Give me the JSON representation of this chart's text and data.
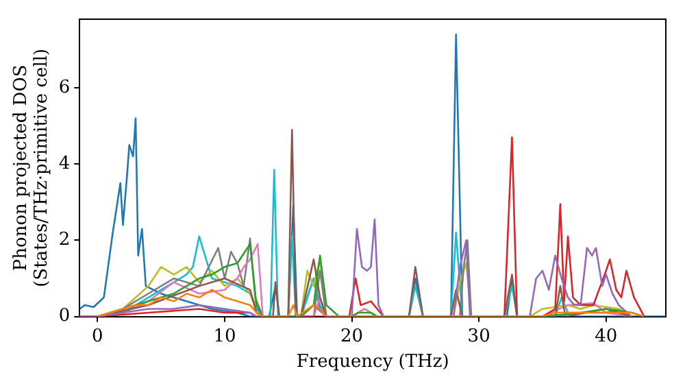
{
  "chart_data": {
    "type": "line",
    "xlabel": "Frequency (THz)",
    "ylabel": "Phonon projected DOS\n(States/THz·primitive cell)",
    "xlim": [
      -1.4,
      44.7
    ],
    "ylim": [
      0,
      7.8
    ],
    "xticks": [
      0,
      10,
      20,
      30,
      40
    ],
    "yticks": [
      0,
      2,
      4,
      6
    ],
    "grid": false,
    "legend": false,
    "marker": "none",
    "line_style": "solid",
    "series": [
      {
        "color": "#ff7f0e",
        "x": [
          0,
          1,
          2,
          3,
          4,
          5,
          6,
          7,
          8,
          9,
          10,
          11,
          12,
          12.5,
          13,
          15,
          15.4,
          15.7,
          17,
          17.5,
          18,
          35,
          36,
          37,
          38,
          39,
          40,
          41,
          42,
          43
        ],
        "values": [
          0,
          0.1,
          0.2,
          0.3,
          0.3,
          0.5,
          0.4,
          0.6,
          0.5,
          0.7,
          0.5,
          0.4,
          0.3,
          0.1,
          0,
          0,
          0.3,
          0,
          0.3,
          0.2,
          0,
          0,
          0.1,
          0.1,
          0.1,
          0.1,
          0.1,
          0.1,
          0.1,
          0
        ]
      },
      {
        "color": "#2ca02c",
        "x": [
          0.6,
          1,
          2,
          3,
          4,
          5,
          6,
          7,
          8,
          9,
          10,
          11,
          12,
          12.5,
          13,
          16,
          17,
          17.5,
          18,
          19,
          20,
          20.5,
          21,
          21.5,
          22,
          35,
          38,
          40,
          42,
          43
        ],
        "values": [
          0.05,
          0.1,
          0.2,
          0.3,
          0.4,
          0.5,
          0.6,
          0.8,
          1.0,
          1.1,
          1.3,
          1.4,
          1.9,
          0.3,
          0,
          0,
          0.3,
          1.6,
          0.3,
          0,
          0,
          0.1,
          0.1,
          0.1,
          0,
          0,
          0.1,
          0.2,
          0.1,
          0
        ]
      },
      {
        "color": "#9467bd",
        "x": [
          -1.4,
          0,
          2,
          4,
          6,
          8,
          10,
          12,
          12.5,
          13,
          16,
          17,
          18,
          20,
          20.4,
          20.8,
          21.2,
          21.5,
          21.8,
          22.1,
          22.5,
          28,
          28.5,
          29,
          29.3,
          30,
          34,
          34.5,
          35,
          35.5,
          36,
          36.5,
          37,
          37.5,
          38,
          38.5,
          38.9,
          39.2,
          39.7,
          40,
          40.5,
          41,
          42
        ],
        "values": [
          0,
          0,
          0.1,
          0.2,
          0.2,
          0.3,
          0.2,
          0.1,
          0,
          0,
          0,
          0.3,
          0,
          0,
          2.3,
          1.3,
          1.2,
          1.3,
          2.55,
          0.3,
          0,
          0,
          1.3,
          2.0,
          0,
          0,
          0,
          1.0,
          1.2,
          0.7,
          1.6,
          1.0,
          0.5,
          0.3,
          0.3,
          1.8,
          1.6,
          1.8,
          0.8,
          1.1,
          0.6,
          0.3,
          0
        ]
      },
      {
        "color": "#d62728",
        "x": [
          -1.4,
          0,
          4,
          8,
          10,
          12,
          12.5,
          13,
          19.8,
          20.3,
          20.7,
          21.5,
          22,
          22.5,
          32,
          32.6,
          33,
          35,
          35.5,
          36,
          36.4,
          36.7,
          37,
          37.4,
          38,
          39,
          40,
          40.3,
          40.8,
          41.2,
          41.6,
          42.2,
          43
        ],
        "values": [
          0,
          0,
          0.1,
          0.2,
          0.1,
          0.1,
          0,
          0,
          0,
          1.0,
          0.3,
          0.4,
          0.2,
          0,
          0,
          4.7,
          0,
          0,
          0.1,
          0.2,
          2.95,
          0.4,
          2.1,
          0.5,
          0.3,
          0.3,
          1.2,
          1.5,
          0.7,
          0.5,
          1.2,
          0.5,
          0
        ]
      },
      {
        "color": "#8c564b",
        "x": [
          -1.4,
          0,
          4,
          8,
          10,
          12,
          12.5,
          13,
          13.8,
          14,
          14.3,
          15,
          15.3,
          15.6,
          16,
          17,
          17.5,
          18,
          24.5,
          25,
          25.6,
          27.8,
          28.2,
          28.7,
          32,
          32.6,
          33,
          36,
          36.4,
          36.8,
          40,
          42
        ],
        "values": [
          0,
          0,
          0.3,
          0.8,
          1.0,
          0.7,
          0.1,
          0,
          0,
          0.9,
          0,
          0,
          4.9,
          0,
          0,
          1.5,
          0.5,
          0,
          0,
          1.3,
          0,
          0,
          0.7,
          0,
          0,
          1.1,
          0,
          0,
          0.8,
          0,
          0.2,
          0
        ]
      },
      {
        "color": "#e377c2",
        "x": [
          -1.4,
          0,
          2,
          4,
          6,
          8,
          10,
          11,
          11.5,
          12,
          12.6,
          13,
          17,
          17.5,
          18,
          20,
          21,
          22,
          35,
          37,
          39,
          40,
          42
        ],
        "values": [
          0,
          0,
          0.1,
          0.4,
          0.9,
          0.6,
          0.7,
          1.0,
          1.3,
          1.5,
          1.9,
          0,
          0,
          0.5,
          0,
          0,
          0.2,
          0,
          0,
          0.3,
          0.35,
          0.1,
          0
        ]
      },
      {
        "color": "#7f7f7f",
        "x": [
          -1.4,
          0,
          2,
          4,
          6,
          8,
          9.5,
          10,
          10.5,
          11,
          11.5,
          12,
          12.4,
          13,
          17,
          17.5,
          18,
          28.5,
          28.8,
          29.1,
          29.4,
          30
        ],
        "values": [
          0,
          0,
          0.2,
          0.6,
          1.0,
          0.8,
          1.8,
          1.0,
          1.7,
          1.4,
          0.8,
          2.05,
          0.5,
          0,
          0,
          1.2,
          0,
          0,
          1.3,
          2.0,
          0,
          0
        ]
      },
      {
        "color": "#bcbd22",
        "x": [
          -1.4,
          0,
          2,
          4,
          5,
          6,
          7,
          8,
          9,
          10,
          11,
          12,
          12.5,
          13,
          16,
          16.5,
          17,
          17.5,
          18,
          20,
          21,
          22,
          28,
          28.5,
          29,
          29.4,
          30,
          34,
          35,
          37,
          38,
          39,
          41,
          42
        ],
        "values": [
          0,
          0,
          0.2,
          0.8,
          1.3,
          1.1,
          1.3,
          0.9,
          1.2,
          0.8,
          1.0,
          0.6,
          0.3,
          0,
          0,
          1.2,
          0.8,
          1.5,
          0,
          0,
          0.2,
          0,
          0,
          0.9,
          1.4,
          0,
          0,
          0,
          0.2,
          0.3,
          0.2,
          0.3,
          0.2,
          0
        ]
      },
      {
        "color": "#17becf",
        "x": [
          -1.4,
          0,
          2,
          4,
          5,
          6,
          7,
          7.5,
          8,
          9,
          10,
          11,
          12,
          12.5,
          13,
          13.6,
          13.9,
          14.2,
          15,
          15.3,
          15.6,
          16,
          17,
          17.5,
          18,
          24.5,
          25,
          25.6,
          27.8,
          28.2,
          28.7,
          32,
          32.6,
          33,
          36,
          36.5,
          37,
          40,
          41,
          42
        ],
        "values": [
          0,
          0,
          0.1,
          0.5,
          0.7,
          0.9,
          1.1,
          1.3,
          2.1,
          1.0,
          0.9,
          0.8,
          0.6,
          0.2,
          0,
          0,
          3.85,
          0,
          0,
          2.1,
          0,
          0,
          1.0,
          0.3,
          0,
          0,
          0.8,
          0,
          0,
          2.2,
          0,
          0,
          0.8,
          0,
          0,
          0.5,
          0.1,
          0.1,
          0.2,
          0
        ]
      },
      {
        "color": "#1f77b4",
        "x": [
          -1.4,
          -1,
          -0.3,
          0.5,
          1.2,
          1.8,
          2.0,
          2.3,
          2.5,
          2.8,
          3.0,
          3.2,
          3.5,
          3.8,
          5,
          7,
          9,
          11,
          12,
          13.5,
          14,
          14.3,
          15,
          15.4,
          15.7,
          16,
          16.6,
          17,
          17.5,
          18,
          24.5,
          25,
          25.6,
          27.8,
          28.2,
          28.7,
          32.2,
          32.6,
          33,
          44.7
        ],
        "values": [
          0.2,
          0.3,
          0.25,
          0.5,
          2.2,
          3.5,
          2.4,
          3.6,
          4.5,
          4.2,
          5.2,
          1.6,
          2.3,
          0.8,
          0.6,
          0.4,
          0.2,
          0.1,
          0,
          0,
          0.8,
          0,
          0,
          2.9,
          0,
          0,
          0.6,
          1.0,
          0.2,
          0,
          0,
          1.0,
          0,
          0,
          7.4,
          0,
          0,
          1.0,
          0,
          0
        ]
      }
    ]
  }
}
